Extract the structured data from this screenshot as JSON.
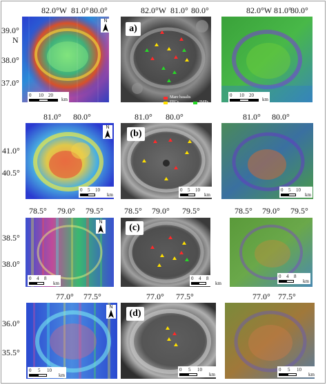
{
  "rows": [
    {
      "id": "a",
      "label": "a)",
      "top_ticks": [
        "82.0°W",
        "81.0°",
        "80.0°"
      ],
      "top_ticks_mid": [
        "82.0°W",
        "81.0°",
        "80.0°"
      ],
      "top_ticks_right": [
        "82.0°W",
        "81.0°",
        "80.0°"
      ],
      "lat_ticks": [
        "39.0°",
        "N",
        "38.0°",
        "37.0°"
      ],
      "scale_left": {
        "nums": [
          "0",
          "10",
          "20"
        ],
        "unit": "km"
      },
      "scale_right": {
        "nums": [
          "0",
          "10",
          "20"
        ],
        "unit": "km"
      }
    },
    {
      "id": "b",
      "label": "(b)",
      "top_ticks": [
        "81.0°",
        "80.0°"
      ],
      "top_ticks_mid": [
        "81.0°",
        "80.0°"
      ],
      "top_ticks_right": [
        "81.0°",
        "80.0°"
      ],
      "lat_ticks": [
        "41.0°",
        "40.5°"
      ],
      "scale_left": {
        "nums": [
          "0",
          "5",
          "10"
        ],
        "unit": "km"
      },
      "scale_mid": {
        "nums": [
          "0",
          "5",
          "10"
        ],
        "unit": "km"
      },
      "scale_right": {
        "nums": [
          "0",
          "5",
          "10"
        ],
        "unit": "km"
      }
    },
    {
      "id": "c",
      "label": "(c)",
      "top_ticks": [
        "78.5°",
        "79.0°",
        "79.5°"
      ],
      "top_ticks_mid": [
        "78.5°",
        "79.0°",
        "79.5°"
      ],
      "top_ticks_right": [
        "78.5°",
        "79.0°",
        "79.5°"
      ],
      "lat_ticks": [
        "38.5°",
        "38.0°"
      ],
      "scale_left": {
        "nums": [
          "0",
          "4",
          "8"
        ],
        "unit": "km"
      },
      "scale_mid": {
        "nums": [
          "0",
          "4",
          "8"
        ],
        "unit": "km"
      },
      "scale_right": {
        "nums": [
          "0",
          "4",
          "8"
        ],
        "unit": "km"
      }
    },
    {
      "id": "d",
      "label": "(d)",
      "top_ticks": [
        "77.0°",
        "77.5°"
      ],
      "top_ticks_mid": [
        "77.0°",
        "77.5°"
      ],
      "top_ticks_right": [
        "77.0°",
        "77.5°"
      ],
      "lat_ticks": [
        "36.0°",
        "35.5°"
      ],
      "scale_left": {
        "nums": [
          "0",
          "5",
          "10"
        ],
        "unit": "km"
      },
      "scale_mid": {
        "nums": [
          "0",
          "5",
          "10"
        ],
        "unit": "km"
      },
      "scale_right": {
        "nums": [
          "0",
          "5",
          "10"
        ],
        "unit": "km"
      }
    }
  ],
  "legend": {
    "items": [
      {
        "label": "Mare basalts",
        "color": "#ff2a2a"
      },
      {
        "label": "FFCs",
        "color": "#ffe000"
      },
      {
        "label": "IMPs",
        "color": "#27d827"
      }
    ]
  },
  "north_label": "N",
  "colors": {
    "mare_basalts_arrow": "#ff2a2a",
    "ffc_arrow": "#ffe000",
    "imp_arrow": "#27d827"
  }
}
